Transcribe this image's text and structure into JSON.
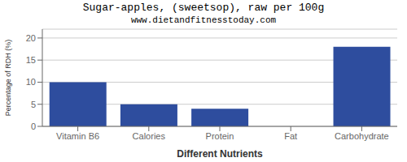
{
  "chart_data": {
    "type": "bar",
    "title": "Sugar-apples, (sweetsop), raw per 100g",
    "subtitle": "www.dietandfitnesstoday.com",
    "xlabel": "Different Nutrients",
    "ylabel": "Percentage of RDH (%)",
    "categories": [
      "Vitamin B6",
      "Calories",
      "Protein",
      "Fat",
      "Carbohydrate"
    ],
    "values": [
      10,
      5,
      4,
      0,
      18
    ],
    "color": "#2e4d9e",
    "ylim": [
      0,
      22
    ],
    "yticks": [
      0,
      5,
      10,
      15,
      20
    ],
    "grid": true
  }
}
